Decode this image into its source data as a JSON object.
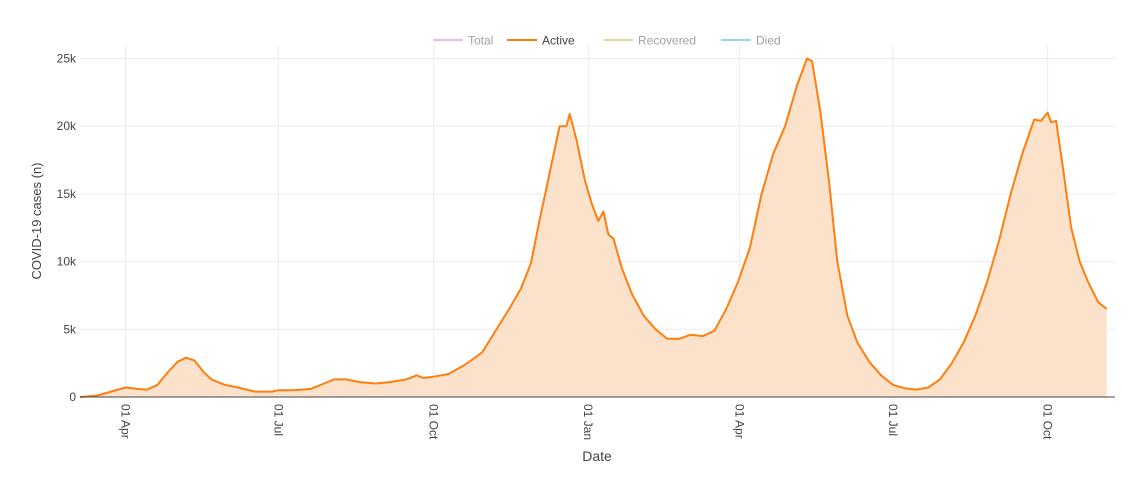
{
  "chart_data": {
    "type": "area",
    "xlabel": "Date",
    "ylabel": "COVID-19 cases (n)",
    "ylim": [
      0,
      26000
    ],
    "yticks": [
      {
        "value": 0,
        "label": "0"
      },
      {
        "value": 5000,
        "label": "5k"
      },
      {
        "value": 10000,
        "label": "10k"
      },
      {
        "value": 15000,
        "label": "15k"
      },
      {
        "value": 20000,
        "label": "20k"
      },
      {
        "value": 25000,
        "label": "25k"
      }
    ],
    "xlim": [
      "2020-03-05",
      "2021-11-10"
    ],
    "xticks": [
      {
        "date": "2020-04-01",
        "label": "01 Apr"
      },
      {
        "date": "2020-07-01",
        "label": "01 Jul"
      },
      {
        "date": "2020-10-01",
        "label": "01 Oct"
      },
      {
        "date": "2021-01-01",
        "label": "01 Jan"
      },
      {
        "date": "2021-04-01",
        "label": "01 Apr"
      },
      {
        "date": "2021-07-01",
        "label": "01 Jul"
      },
      {
        "date": "2021-10-01",
        "label": "01 Oct"
      }
    ],
    "grid": true,
    "legend_position": "top-center",
    "legend": [
      {
        "name": "Total",
        "color": "#e377c2",
        "active": false
      },
      {
        "name": "Active",
        "color": "#ff7f0e",
        "active": true
      },
      {
        "name": "Recovered",
        "color": "#bcbd22",
        "active": false
      },
      {
        "name": "Died",
        "color": "#17becf",
        "active": false
      }
    ],
    "series": [
      {
        "name": "Active",
        "color": "#ff7f0e",
        "fill": "#fde2cb",
        "points": [
          [
            "2020-03-05",
            0
          ],
          [
            "2020-03-15",
            100
          ],
          [
            "2020-03-25",
            450
          ],
          [
            "2020-04-01",
            700
          ],
          [
            "2020-04-08",
            600
          ],
          [
            "2020-04-14",
            550
          ],
          [
            "2020-04-20",
            900
          ],
          [
            "2020-04-26",
            1800
          ],
          [
            "2020-05-02",
            2600
          ],
          [
            "2020-05-07",
            2900
          ],
          [
            "2020-05-12",
            2700
          ],
          [
            "2020-05-17",
            1900
          ],
          [
            "2020-05-22",
            1300
          ],
          [
            "2020-05-30",
            900
          ],
          [
            "2020-06-07",
            700
          ],
          [
            "2020-06-17",
            400
          ],
          [
            "2020-06-27",
            400
          ],
          [
            "2020-07-01",
            500
          ],
          [
            "2020-07-10",
            500
          ],
          [
            "2020-07-20",
            600
          ],
          [
            "2020-07-28",
            1000
          ],
          [
            "2020-08-03",
            1300
          ],
          [
            "2020-08-10",
            1300
          ],
          [
            "2020-08-18",
            1100
          ],
          [
            "2020-08-28",
            1000
          ],
          [
            "2020-09-05",
            1100
          ],
          [
            "2020-09-15",
            1300
          ],
          [
            "2020-09-21",
            1600
          ],
          [
            "2020-09-25",
            1400
          ],
          [
            "2020-10-01",
            1500
          ],
          [
            "2020-10-10",
            1700
          ],
          [
            "2020-10-20",
            2400
          ],
          [
            "2020-10-30",
            3300
          ],
          [
            "2020-11-05",
            4500
          ],
          [
            "2020-11-15",
            6500
          ],
          [
            "2020-11-22",
            8000
          ],
          [
            "2020-11-28",
            9900
          ],
          [
            "2020-12-03",
            13000
          ],
          [
            "2020-12-09",
            16500
          ],
          [
            "2020-12-15",
            20000
          ],
          [
            "2020-12-19",
            20000
          ],
          [
            "2020-12-21",
            20900
          ],
          [
            "2020-12-25",
            19000
          ],
          [
            "2020-12-30",
            16000
          ],
          [
            "2021-01-03",
            14300
          ],
          [
            "2021-01-07",
            13000
          ],
          [
            "2021-01-10",
            13700
          ],
          [
            "2021-01-13",
            12000
          ],
          [
            "2021-01-16",
            11700
          ],
          [
            "2021-01-21",
            9500
          ],
          [
            "2021-01-27",
            7600
          ],
          [
            "2021-02-03",
            6000
          ],
          [
            "2021-02-10",
            5000
          ],
          [
            "2021-02-17",
            4300
          ],
          [
            "2021-02-24",
            4300
          ],
          [
            "2021-03-03",
            4600
          ],
          [
            "2021-03-10",
            4500
          ],
          [
            "2021-03-17",
            4900
          ],
          [
            "2021-03-24",
            6500
          ],
          [
            "2021-03-31",
            8500
          ],
          [
            "2021-04-07",
            11000
          ],
          [
            "2021-04-14",
            15000
          ],
          [
            "2021-04-21",
            18000
          ],
          [
            "2021-04-28",
            20000
          ],
          [
            "2021-05-05",
            23000
          ],
          [
            "2021-05-11",
            25000
          ],
          [
            "2021-05-14",
            24800
          ],
          [
            "2021-05-19",
            21000
          ],
          [
            "2021-05-24",
            16000
          ],
          [
            "2021-05-29",
            10000
          ],
          [
            "2021-06-04",
            6000
          ],
          [
            "2021-06-10",
            4000
          ],
          [
            "2021-06-17",
            2600
          ],
          [
            "2021-06-24",
            1600
          ],
          [
            "2021-07-01",
            900
          ],
          [
            "2021-07-08",
            650
          ],
          [
            "2021-07-15",
            550
          ],
          [
            "2021-07-22",
            700
          ],
          [
            "2021-07-29",
            1300
          ],
          [
            "2021-08-05",
            2500
          ],
          [
            "2021-08-12",
            4000
          ],
          [
            "2021-08-19",
            6000
          ],
          [
            "2021-08-26",
            8500
          ],
          [
            "2021-09-02",
            11500
          ],
          [
            "2021-09-09",
            15000
          ],
          [
            "2021-09-16",
            18000
          ],
          [
            "2021-09-23",
            20500
          ],
          [
            "2021-09-27",
            20400
          ],
          [
            "2021-10-01",
            21000
          ],
          [
            "2021-10-03",
            20300
          ],
          [
            "2021-10-06",
            20400
          ],
          [
            "2021-10-10",
            17000
          ],
          [
            "2021-10-15",
            12500
          ],
          [
            "2021-10-20",
            10000
          ],
          [
            "2021-10-25",
            8500
          ],
          [
            "2021-10-31",
            7000
          ],
          [
            "2021-11-05",
            6500
          ]
        ]
      }
    ]
  }
}
